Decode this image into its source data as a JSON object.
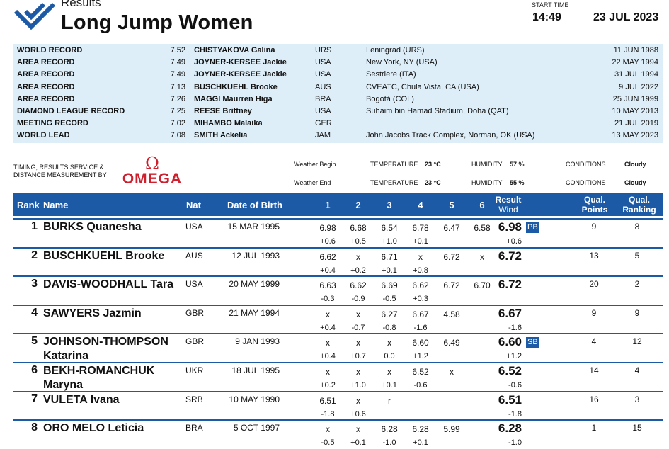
{
  "header": {
    "results_label": "Results",
    "event_title": "Long Jump Women",
    "start_time_label": "START TIME",
    "start_time": "14:49",
    "date": "23 JUL 2023",
    "accent_color": "#1c5aa6",
    "logo_icon": "diamond-league-logo-icon"
  },
  "records": [
    {
      "type": "WORLD RECORD",
      "mark": "7.52",
      "name": "CHISTYAKOVA Galina",
      "nat": "URS",
      "venue": "Leningrad (URS)",
      "date": "11 JUN 1988"
    },
    {
      "type": "AREA RECORD",
      "mark": "7.49",
      "name": "JOYNER-KERSEE Jackie",
      "nat": "USA",
      "venue": "New York, NY (USA)",
      "date": "22 MAY 1994"
    },
    {
      "type": "AREA RECORD",
      "mark": "7.49",
      "name": "JOYNER-KERSEE Jackie",
      "nat": "USA",
      "venue": "Sestriere (ITA)",
      "date": "31 JUL 1994"
    },
    {
      "type": "AREA RECORD",
      "mark": "7.13",
      "name": "BUSCHKUEHL Brooke",
      "nat": "AUS",
      "venue": "CVEATC, Chula Vista, CA (USA)",
      "date": "9 JUL 2022"
    },
    {
      "type": "AREA RECORD",
      "mark": "7.26",
      "name": "MAGGI Maurren Higa",
      "nat": "BRA",
      "venue": "Bogotá (COL)",
      "date": "25 JUN 1999"
    },
    {
      "type": "DIAMOND LEAGUE RECORD",
      "mark": "7.25",
      "name": "REESE Brittney",
      "nat": "USA",
      "venue": "Suhaim bin Hamad Stadium, Doha (QAT)",
      "date": "10 MAY 2013"
    },
    {
      "type": "MEETING RECORD",
      "mark": "7.02",
      "name": "MIHAMBO Malaika",
      "nat": "GER",
      "venue": "",
      "date": "21 JUL 2019"
    },
    {
      "type": "WORLD LEAD",
      "mark": "7.08",
      "name": "SMITH Ackelia",
      "nat": "JAM",
      "venue": "John Jacobs Track Complex, Norman, OK (USA)",
      "date": "13 MAY 2023"
    }
  ],
  "timing": {
    "label_line1": "TIMING, RESULTS SERVICE &",
    "label_line2": "DISTANCE MEASUREMENT BY",
    "brand_symbol": "Ω",
    "brand_name": "OMEGA",
    "brand_color": "#d0202e"
  },
  "weather": {
    "begin": {
      "label": "Weather Begin",
      "temp_label": "TEMPERATURE",
      "temp": "23 °C",
      "hum_label": "HUMIDITY",
      "hum": "57 %",
      "cond_label": "CONDITIONS",
      "cond": "Cloudy"
    },
    "end": {
      "label": "Weather End",
      "temp_label": "TEMPERATURE",
      "temp": "23 °C",
      "hum_label": "HUMIDITY",
      "hum": "55 %",
      "cond_label": "CONDITIONS",
      "cond": "Cloudy"
    }
  },
  "table": {
    "headers": {
      "rank": "Rank",
      "name": "Name",
      "nat": "Nat",
      "dob": "Date of Birth",
      "a1": "1",
      "a2": "2",
      "a3": "3",
      "a4": "4",
      "a5": "5",
      "a6": "6",
      "result": "Result",
      "wind": "Wind",
      "qp1": "Qual.",
      "qp2": "Points",
      "qr1": "Qual.",
      "qr2": "Ranking"
    },
    "rows": [
      {
        "rank": "1",
        "name1": "BURKS Quanesha",
        "name2": "",
        "nat": "USA",
        "dob": "15 MAR 1995",
        "att": [
          "6.98",
          "6.68",
          "6.54",
          "6.78",
          "6.47",
          "6.58"
        ],
        "wind": [
          "+0.6",
          "+0.5",
          "+1.0",
          "+0.1",
          "",
          ""
        ],
        "result": "6.98",
        "result_wind": "+0.6",
        "badge": "PB",
        "qp": "9",
        "qr": "8"
      },
      {
        "rank": "2",
        "name1": "BUSCHKUEHL Brooke",
        "name2": "",
        "nat": "AUS",
        "dob": "12 JUL 1993",
        "att": [
          "6.62",
          "x",
          "6.71",
          "x",
          "6.72",
          "x"
        ],
        "wind": [
          "+0.4",
          "+0.2",
          "+0.1",
          "+0.8",
          "",
          ""
        ],
        "result": "6.72",
        "result_wind": "",
        "badge": "",
        "qp": "13",
        "qr": "5"
      },
      {
        "rank": "3",
        "name1": "DAVIS-WOODHALL Tara",
        "name2": "",
        "nat": "USA",
        "dob": "20 MAY 1999",
        "att": [
          "6.63",
          "6.62",
          "6.69",
          "6.62",
          "6.72",
          "6.70"
        ],
        "wind": [
          "-0.3",
          "-0.9",
          "-0.5",
          "+0.3",
          "",
          ""
        ],
        "result": "6.72",
        "result_wind": "",
        "badge": "",
        "qp": "20",
        "qr": "2"
      },
      {
        "rank": "4",
        "name1": "SAWYERS Jazmin",
        "name2": "",
        "nat": "GBR",
        "dob": "21 MAY 1994",
        "att": [
          "x",
          "x",
          "6.27",
          "6.67",
          "4.58",
          ""
        ],
        "wind": [
          "+0.4",
          "-0.7",
          "-0.8",
          "-1.6",
          "",
          ""
        ],
        "result": "6.67",
        "result_wind": "-1.6",
        "badge": "",
        "qp": "9",
        "qr": "9"
      },
      {
        "rank": "5",
        "name1": "JOHNSON-THOMPSON",
        "name2": "Katarina",
        "nat": "GBR",
        "dob": "9 JAN 1993",
        "att": [
          "x",
          "x",
          "x",
          "6.60",
          "6.49",
          ""
        ],
        "wind": [
          "+0.4",
          "+0.7",
          "0.0",
          "+1.2",
          "",
          ""
        ],
        "result": "6.60",
        "result_wind": "+1.2",
        "badge": "SB",
        "qp": "4",
        "qr": "12"
      },
      {
        "rank": "6",
        "name1": "BEKH-ROMANCHUK",
        "name2": "Maryna",
        "nat": "UKR",
        "dob": "18 JUL 1995",
        "att": [
          "x",
          "x",
          "x",
          "6.52",
          "x",
          ""
        ],
        "wind": [
          "+0.2",
          "+1.0",
          "+0.1",
          "-0.6",
          "",
          ""
        ],
        "result": "6.52",
        "result_wind": "-0.6",
        "badge": "",
        "qp": "14",
        "qr": "4"
      },
      {
        "rank": "7",
        "name1": "VULETA Ivana",
        "name2": "",
        "nat": "SRB",
        "dob": "10 MAY 1990",
        "att": [
          "6.51",
          "x",
          "r",
          "",
          "",
          ""
        ],
        "wind": [
          "-1.8",
          "+0.6",
          "",
          "",
          "",
          ""
        ],
        "result": "6.51",
        "result_wind": "-1.8",
        "badge": "",
        "qp": "16",
        "qr": "3"
      },
      {
        "rank": "8",
        "name1": "ORO MELO Leticia",
        "name2": "",
        "nat": "BRA",
        "dob": "5 OCT 1997",
        "att": [
          "x",
          "x",
          "6.28",
          "6.28",
          "5.99",
          ""
        ],
        "wind": [
          "-0.5",
          "+0.1",
          "-1.0",
          "+0.1",
          "",
          ""
        ],
        "result": "6.28",
        "result_wind": "-1.0",
        "badge": "",
        "qp": "1",
        "qr": "15"
      }
    ]
  }
}
